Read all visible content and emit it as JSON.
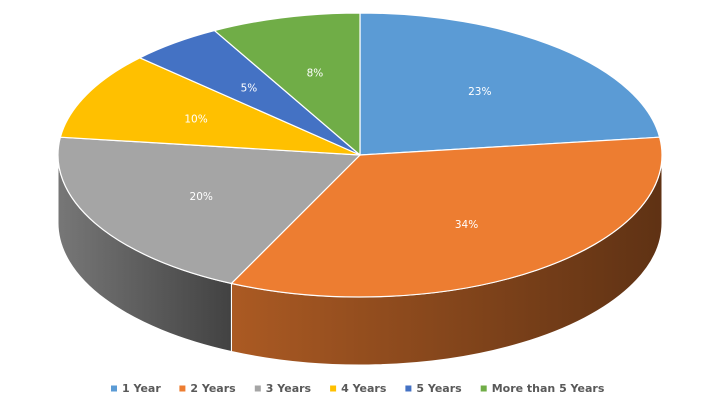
{
  "chart_data": {
    "type": "pie",
    "style": "3d",
    "title": "",
    "categories": [
      "1 Year",
      "2 Years",
      "3 Years",
      "4 Years",
      "5 Years",
      "More than 5 Years"
    ],
    "values": [
      23,
      34,
      20,
      10,
      5,
      8
    ],
    "labels": [
      "23%",
      "34%",
      "20%",
      "10%",
      "5%",
      "8%"
    ],
    "colors": [
      "#5B9BD5",
      "#ED7D31",
      "#A5A5A5",
      "#FFC000",
      "#4472C4",
      "#70AD47"
    ],
    "legend": {
      "position": "bottom"
    }
  }
}
